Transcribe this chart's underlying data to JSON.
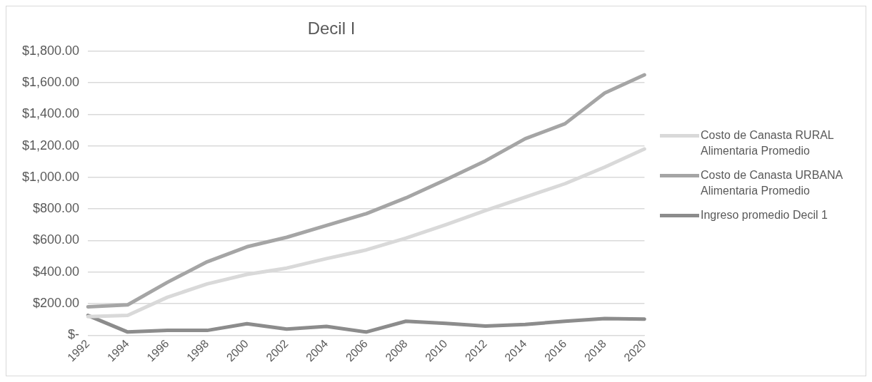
{
  "chart_data": {
    "type": "line",
    "title": "Decil I",
    "categories": [
      "1992",
      "1994",
      "1996",
      "1998",
      "2000",
      "2002",
      "2004",
      "2006",
      "2008",
      "2010",
      "2012",
      "2014",
      "2016",
      "2018",
      "2020"
    ],
    "series": [
      {
        "name": "Costo de Canasta RURAL Alimentaria Promedio",
        "color": "#d9d9d9",
        "values": [
          118,
          125,
          240,
          325,
          385,
          425,
          485,
          540,
          615,
          700,
          790,
          875,
          960,
          1065,
          1180
        ]
      },
      {
        "name": "Costo de Canasta URBANA Alimentaria Promedio",
        "color": "#a5a5a5",
        "values": [
          180,
          192,
          335,
          465,
          560,
          620,
          695,
          770,
          870,
          985,
          1105,
          1245,
          1340,
          1535,
          1650
        ]
      },
      {
        "name": "Ingreso promedio Decil 1",
        "color": "#8c8c8c",
        "values": [
          125,
          20,
          30,
          30,
          72,
          38,
          55,
          20,
          88,
          75,
          58,
          68,
          88,
          105,
          102
        ]
      }
    ],
    "ylim": [
      0,
      1800
    ],
    "yticks": [
      {
        "value": 0,
        "label": "$-"
      },
      {
        "value": 200,
        "label": "$200.00"
      },
      {
        "value": 400,
        "label": "$400.00"
      },
      {
        "value": 600,
        "label": "$600.00"
      },
      {
        "value": 800,
        "label": "$800.00"
      },
      {
        "value": 1000,
        "label": "$1,000.00"
      },
      {
        "value": 1200,
        "label": "$1,200.00"
      },
      {
        "value": 1400,
        "label": "$1,400.00"
      },
      {
        "value": 1600,
        "label": "$1,600.00"
      },
      {
        "value": 1800,
        "label": "$1,800.00"
      }
    ],
    "grid": "y",
    "legend": "right",
    "marker": "none",
    "line_style": "solid"
  }
}
